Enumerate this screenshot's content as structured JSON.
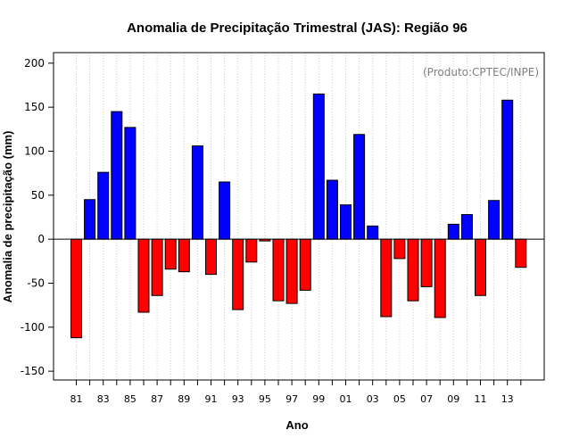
{
  "chart_data": {
    "type": "bar",
    "title": "Anomalia de Precipitação Trimestral (JAS): Região 96",
    "xlabel": "Ano",
    "ylabel": "Anomalia de precipitação (mm)",
    "annotation": "(Produto:CPTEC/INPE)",
    "ylim": [
      -160,
      212
    ],
    "yticks": [
      -150,
      -100,
      -50,
      0,
      50,
      100,
      150,
      200
    ],
    "grid": "vertical dotted lines at each year",
    "positive_color": "#0000ff",
    "negative_color": "#ff0000",
    "categories": [
      "81",
      "82",
      "83",
      "84",
      "85",
      "86",
      "87",
      "88",
      "89",
      "90",
      "91",
      "92",
      "93",
      "94",
      "95",
      "96",
      "97",
      "98",
      "99",
      "00",
      "01",
      "02",
      "03",
      "04",
      "05",
      "06",
      "07",
      "08",
      "09",
      "10",
      "11",
      "12",
      "13",
      "14"
    ],
    "xtick_labels": [
      "81",
      "83",
      "85",
      "87",
      "89",
      "91",
      "93",
      "95",
      "97",
      "99",
      "01",
      "03",
      "05",
      "07",
      "09",
      "11",
      "13"
    ],
    "values": [
      -112,
      45,
      76,
      145,
      127,
      -83,
      -64,
      -34,
      -37,
      106,
      -40,
      65,
      -80,
      -26,
      -2,
      -70,
      -73,
      -58,
      165,
      67,
      39,
      119,
      15,
      -88,
      -22,
      -70,
      -54,
      -89,
      17,
      28,
      -64,
      44,
      158,
      -32
    ]
  }
}
